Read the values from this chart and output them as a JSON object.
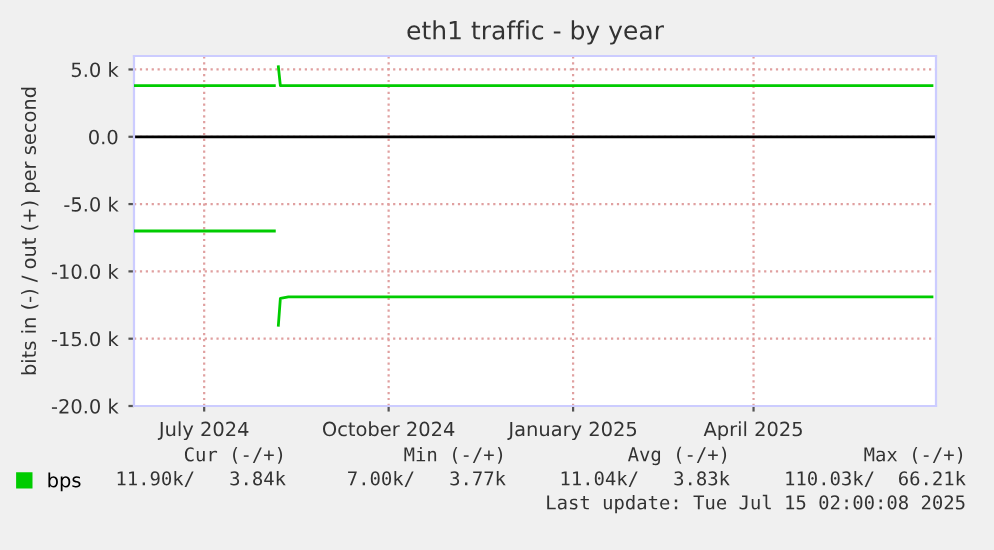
{
  "chart_data": {
    "type": "line",
    "title": "eth1 traffic - by year",
    "ylabel": "bits in (-) / out (+) per second",
    "xlim": [
      "2024-05-27",
      "2025-07-01"
    ],
    "xticks": [
      {
        "value": "2024-07-01",
        "label": "July 2024"
      },
      {
        "value": "2024-10-01",
        "label": "October 2024"
      },
      {
        "value": "2025-01-01",
        "label": "January 2025"
      },
      {
        "value": "2025-04-01",
        "label": "April 2025"
      }
    ],
    "ylim": [
      -20000,
      6000
    ],
    "yticks": [
      {
        "value": -20000,
        "label": "-20.0 k"
      },
      {
        "value": -15000,
        "label": "-15.0 k"
      },
      {
        "value": -10000,
        "label": "-10.0 k"
      },
      {
        "value": -5000,
        "label": "-5.0 k"
      },
      {
        "value": 0,
        "label": "0.0"
      },
      {
        "value": 5000,
        "label": "5.0 k"
      }
    ],
    "grid": true,
    "legend": "bottom",
    "ref_lines": [
      {
        "axis": "y",
        "value": 0,
        "color": "#000000"
      }
    ],
    "series": [
      {
        "name": "bps",
        "color": "#00cc00",
        "x": [
          "2024-05-27",
          "2024-08-05",
          "2024-08-06",
          "2024-08-07",
          "2024-08-08",
          "2025-06-29"
        ],
        "values": [
          3800,
          3800,
          null,
          5200,
          3800,
          3800
        ]
      },
      {
        "color": "#00cc00",
        "x": [
          "2024-05-27",
          "2024-08-05",
          "2024-08-06",
          "2024-08-07",
          "2024-08-08",
          "2024-08-12",
          "2024-10-15",
          "2024-12-20",
          "2025-02-20",
          "2025-04-25",
          "2025-06-29"
        ],
        "values": [
          -7000,
          -7000,
          null,
          -14000,
          -12000,
          -11900,
          -11900,
          -11900,
          -11900,
          -11900,
          -11900
        ]
      }
    ],
    "annotations": [
      "Cur (-/+)",
      "Min (-/+)",
      "Avg (-/+)",
      "Max (-/+)",
      "11.90k/   3.84k",
      "7.00k/   3.77k",
      "11.04k/   3.83k",
      "110.03k/  66.21k",
      "Last update: Tue Jul 15 02:00:08 2025"
    ]
  }
}
